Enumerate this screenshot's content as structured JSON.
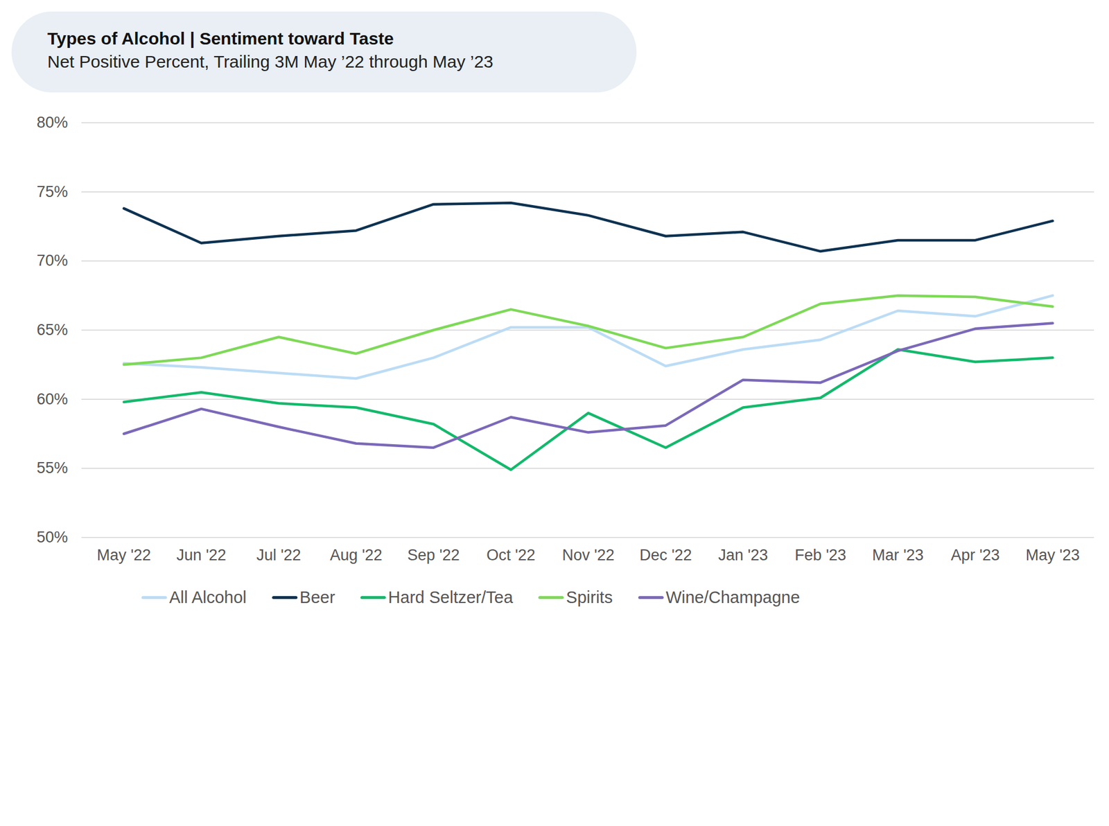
{
  "chart_data": {
    "type": "line",
    "title": "Types of Alcohol | Sentiment toward Taste",
    "subtitle": "Net Positive Percent, Trailing 3M May ’22 through May ’23",
    "categories": [
      "May '22",
      "Jun '22",
      "Jul '22",
      "Aug '22",
      "Sep '22",
      "Oct '22",
      "Nov '22",
      "Dec '22",
      "Jan '23",
      "Feb '23",
      "Mar '23",
      "Apr '23",
      "May '23"
    ],
    "series": [
      {
        "name": "All Alcohol",
        "color": "#bcdcf5",
        "values": [
          62.6,
          62.3,
          61.9,
          61.5,
          63.0,
          65.2,
          65.2,
          62.4,
          63.6,
          64.3,
          66.4,
          66.0,
          67.5
        ]
      },
      {
        "name": "Beer",
        "color": "#0d3251",
        "values": [
          73.8,
          71.3,
          71.8,
          72.2,
          74.1,
          74.2,
          73.3,
          71.8,
          72.1,
          70.7,
          71.5,
          71.5,
          72.9
        ]
      },
      {
        "name": "Hard Seltzer/Tea",
        "color": "#13b96b",
        "values": [
          59.8,
          60.5,
          59.7,
          59.4,
          58.2,
          54.9,
          59.0,
          56.5,
          59.4,
          60.1,
          63.6,
          62.7,
          63.0
        ]
      },
      {
        "name": "Spirits",
        "color": "#7ed957",
        "values": [
          62.5,
          63.0,
          64.5,
          63.3,
          65.0,
          66.5,
          65.3,
          63.7,
          64.5,
          66.9,
          67.5,
          67.4,
          66.7
        ]
      },
      {
        "name": "Wine/Champagne",
        "color": "#7b68b8",
        "values": [
          57.5,
          59.3,
          58.0,
          56.8,
          56.5,
          58.7,
          57.6,
          58.1,
          61.4,
          61.2,
          63.5,
          65.1,
          65.5
        ]
      }
    ],
    "ylim": [
      50,
      80
    ],
    "yticks": [
      {
        "value": 50,
        "label": "50%"
      },
      {
        "value": 55,
        "label": "55%"
      },
      {
        "value": 60,
        "label": "60%"
      },
      {
        "value": 65,
        "label": "65%"
      },
      {
        "value": 70,
        "label": "70%"
      },
      {
        "value": 75,
        "label": "75%"
      },
      {
        "value": 80,
        "label": "80%"
      }
    ],
    "grid": true,
    "legend": "bottom"
  }
}
